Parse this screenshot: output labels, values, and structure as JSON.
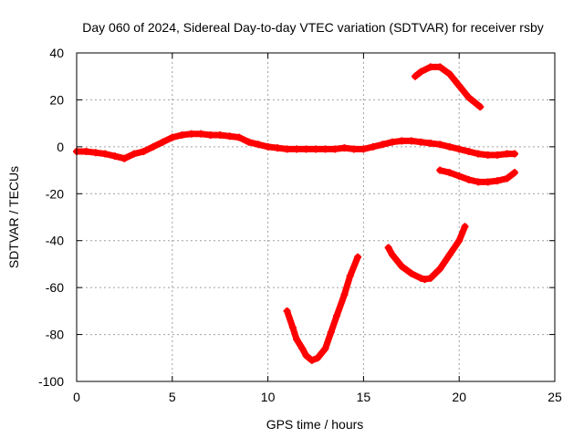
{
  "chart_data": {
    "type": "scatter",
    "title": "Day 060 of 2024, Sidereal Day-to-day VTEC variation (SDTVAR) for receiver rsby",
    "xlabel": "GPS time / hours",
    "ylabel": "SDTVAR / TECUs",
    "xlim": [
      0,
      25
    ],
    "ylim": [
      -100,
      40
    ],
    "xticks": [
      0,
      5,
      10,
      15,
      20,
      25
    ],
    "yticks": [
      -100,
      -80,
      -60,
      -40,
      -20,
      0,
      20,
      40
    ],
    "xtick_labels": [
      "0",
      "5",
      "10",
      "15",
      "20",
      "25"
    ],
    "ytick_labels": [
      "-100",
      "-80",
      "-60",
      "-40",
      "-20",
      "0",
      "20",
      "40"
    ],
    "grid": true,
    "marker_color": "#ff0000",
    "series": [
      {
        "name": "main-trace",
        "x": [
          0,
          0.5,
          1,
          1.5,
          2,
          2.5,
          3,
          3.5,
          4,
          4.5,
          5,
          5.5,
          6,
          6.5,
          7,
          7.5,
          8,
          8.5,
          9,
          9.5,
          10,
          10.5,
          11,
          11.5,
          12,
          12.5,
          13,
          13.5,
          14,
          14.5,
          15,
          15.5,
          16,
          16.5,
          17,
          17.5,
          18,
          18.5,
          19,
          19.5,
          20,
          20.5,
          21,
          21.5,
          22,
          22.5,
          22.9
        ],
        "y": [
          -2,
          -2,
          -2.5,
          -3,
          -4,
          -5,
          -3,
          -2,
          0,
          2,
          4,
          5,
          5.5,
          5.5,
          5,
          5,
          4.5,
          4,
          2,
          1,
          0,
          -0.5,
          -1,
          -1,
          -1,
          -1,
          -1,
          -1,
          -0.5,
          -1,
          -1,
          0,
          1,
          2,
          2.5,
          2.5,
          2,
          1.5,
          1,
          0,
          -1,
          -2,
          -3,
          -3.5,
          -3.5,
          -3,
          -3
        ]
      },
      {
        "name": "upper-arc",
        "x": [
          17.7,
          18,
          18.5,
          19,
          19.5,
          20,
          20.5,
          21.1
        ],
        "y": [
          30,
          32,
          34,
          34,
          31,
          26,
          21,
          17
        ]
      },
      {
        "name": "lower-band",
        "x": [
          19,
          19.5,
          20,
          20.5,
          21,
          21.5,
          22,
          22.5,
          22.9
        ],
        "y": [
          -10,
          -11,
          -12.5,
          -14,
          -15,
          -15,
          -14.5,
          -13.5,
          -11
        ]
      },
      {
        "name": "mid-curve",
        "x": [
          16.3,
          16.5,
          17,
          17.5,
          18,
          18.2,
          18.5,
          19,
          19.5,
          20,
          20.3
        ],
        "y": [
          -43,
          -46,
          -51,
          -54,
          -56,
          -56.5,
          -56,
          -52,
          -46,
          -40,
          -34
        ]
      },
      {
        "name": "deep-curve",
        "x": [
          11,
          11.3,
          11.5,
          11.8,
          12,
          12.3,
          12.6,
          13,
          13.3,
          13.6,
          14,
          14.3,
          14.7
        ],
        "y": [
          -70,
          -77,
          -82,
          -86,
          -89,
          -91,
          -90,
          -86,
          -79,
          -72,
          -63,
          -55,
          -47
        ]
      }
    ]
  }
}
